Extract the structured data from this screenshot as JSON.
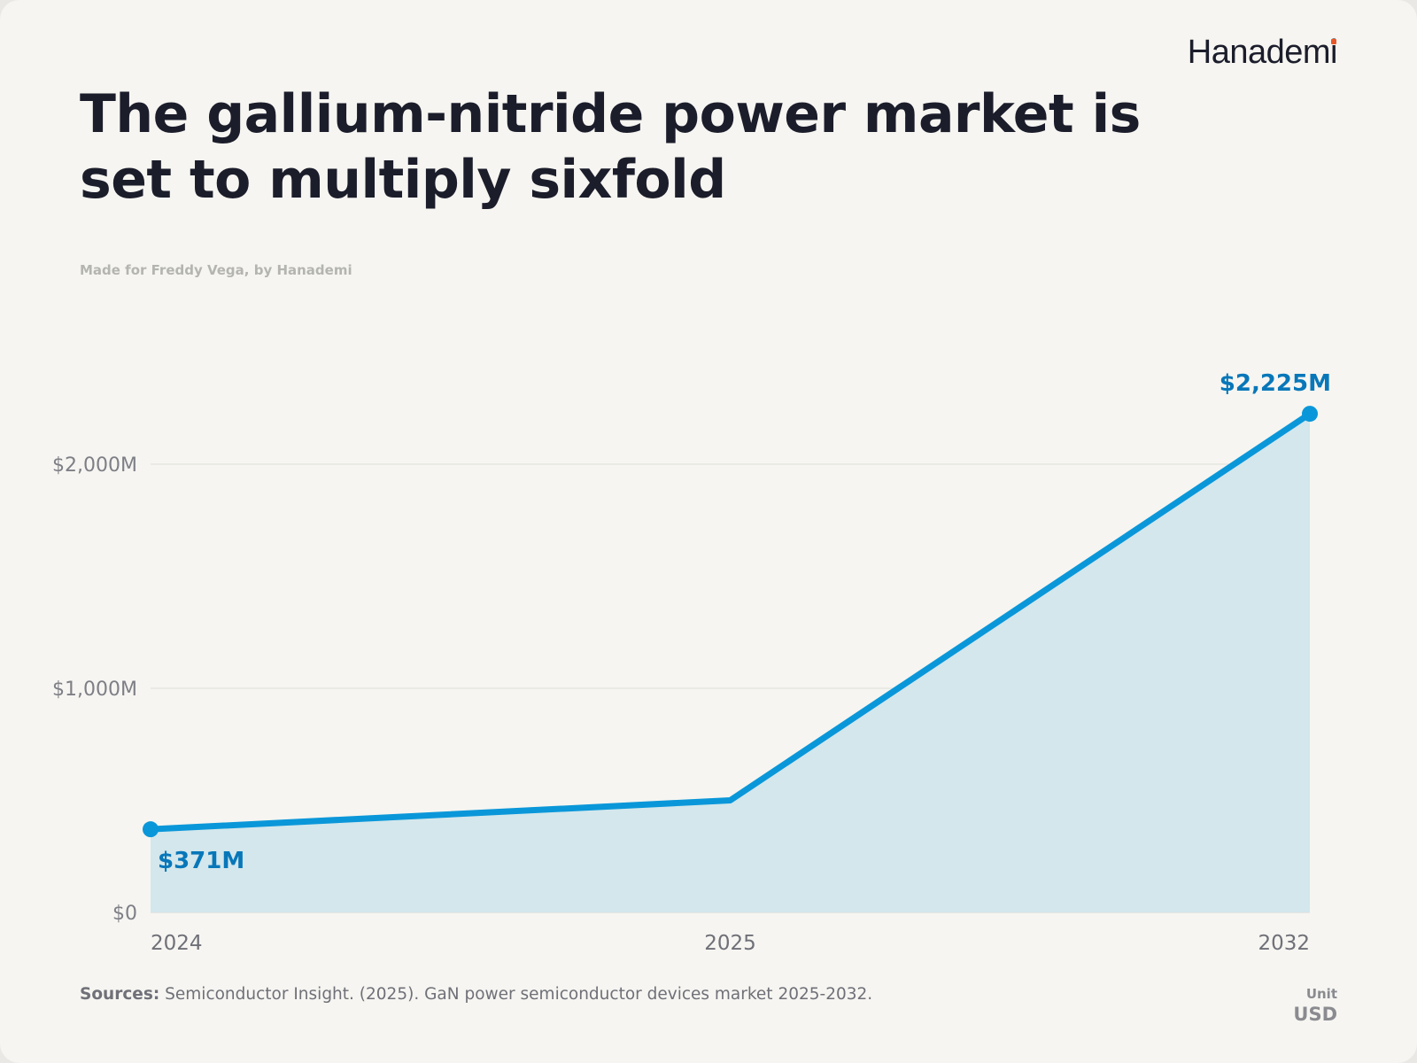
{
  "brand": {
    "name_pre": "Hanadem",
    "name_post": "",
    "name_i": "i"
  },
  "title": "The gallium-nitride power market is set to multiply sixfold",
  "credit": "Made for Freddy Vega, by Hanademi",
  "sources": {
    "label": "Sources:",
    "text": "Semiconductor Insight. (2025). GaN power semiconductor devices market 2025-2032."
  },
  "unit": {
    "label": "Unit",
    "value": "USD"
  },
  "colors": {
    "line": "#0a97d9",
    "area": "#d3e7ec",
    "label": "#0877b9",
    "grid": "#e3e3de"
  },
  "chart_data": {
    "type": "area",
    "x": [
      "2024",
      "2025",
      "2032"
    ],
    "values": [
      371,
      500,
      2225
    ],
    "unit": "millions USD",
    "ylim": [
      0,
      2400
    ],
    "yticks": [
      {
        "value": 0,
        "label": "$0"
      },
      {
        "value": 1000,
        "label": "$1,000M"
      },
      {
        "value": 2000,
        "label": "$2,000M"
      }
    ],
    "data_labels": [
      {
        "index": 0,
        "text": "$371M"
      },
      {
        "index": 2,
        "text": "$2,225M"
      }
    ],
    "grid": true,
    "legend": "none"
  }
}
